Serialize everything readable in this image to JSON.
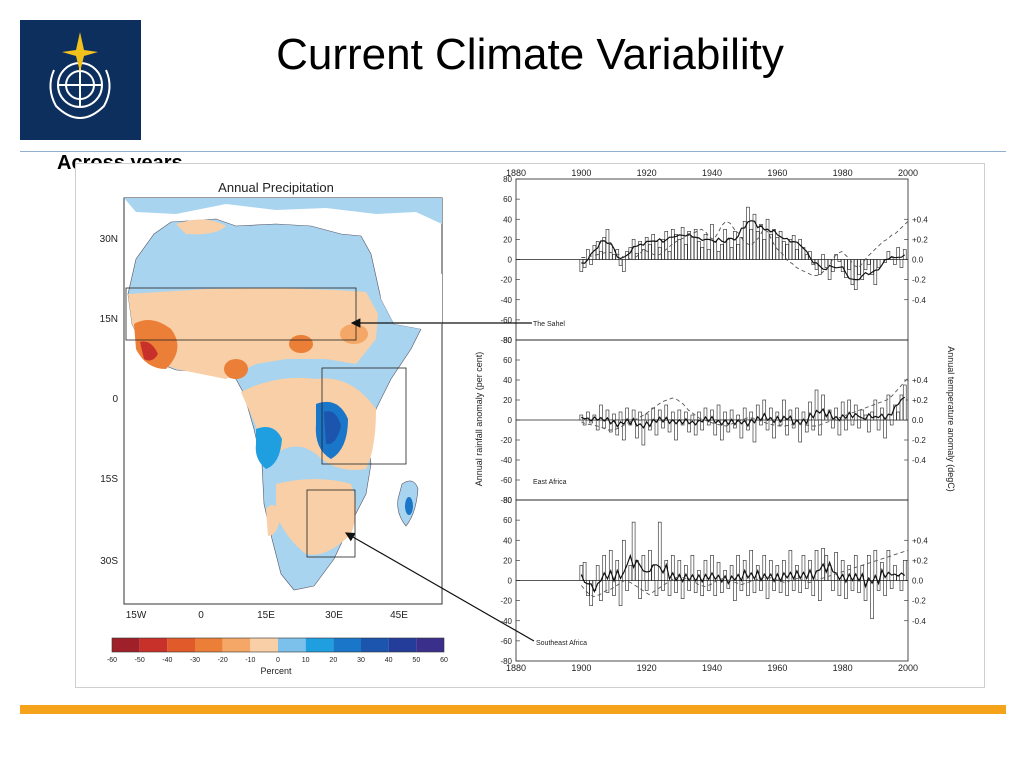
{
  "slide": {
    "title": "Current Climate Variability",
    "subtitle": "Across years",
    "footer_color": "#f5a31a",
    "logo_color": "#0d2f5e"
  },
  "chart_data": [
    {
      "type": "heatmap",
      "title": "Annual Precipitation",
      "x_ticks": [
        "15W",
        "0",
        "15E",
        "30E",
        "45E"
      ],
      "y_ticks": [
        "30N",
        "15N",
        "0",
        "15S",
        "30S"
      ],
      "colorbar": {
        "label": "Percent",
        "ticks": [
          "-60",
          "-50",
          "-40",
          "-30",
          "-20",
          "-10",
          "0",
          "10",
          "20",
          "30",
          "40",
          "50",
          "60"
        ],
        "colors": [
          "#a0202a",
          "#c8302a",
          "#e05a2a",
          "#ec7f38",
          "#f4a766",
          "#f8cfa6",
          "#a9d4ef",
          "#7cc1ec",
          "#1f9ee0",
          "#1a76c8",
          "#1b55ad",
          "#253d9a",
          "#3a2f8a"
        ]
      },
      "regions": [
        "The Sahel",
        "East Africa",
        "Southeast Africa"
      ]
    },
    {
      "type": "bar",
      "x_ticks": [
        "1880",
        "1900",
        "1920",
        "1940",
        "1960",
        "1980",
        "2000"
      ],
      "xlim": [
        1880,
        2000
      ],
      "ylabel": "Annual rainfall anomaly (per cent)",
      "y2label": "Annual temperature anomaly (degC)",
      "y_ticks": [
        "80",
        "60",
        "40",
        "20",
        "0",
        "-20",
        "-40",
        "-60",
        "-80"
      ],
      "ylim": [
        -80,
        80
      ],
      "y2_ticks": [
        "+0.4",
        "+0.2",
        "0.0",
        "-0.2",
        "-0.4"
      ],
      "y2lim": [
        -0.8,
        0.8
      ],
      "panels": [
        {
          "name": "The Sahel",
          "years_start": 1900,
          "rain": [
            -12,
            -8,
            10,
            -5,
            14,
            18,
            8,
            22,
            30,
            15,
            5,
            10,
            -6,
            -12,
            8,
            12,
            20,
            6,
            18,
            10,
            22,
            15,
            25,
            18,
            12,
            20,
            28,
            8,
            30,
            25,
            20,
            32,
            15,
            28,
            22,
            30,
            18,
            12,
            25,
            10,
            35,
            18,
            8,
            15,
            30,
            20,
            12,
            28,
            15,
            22,
            38,
            52,
            30,
            45,
            28,
            35,
            20,
            40,
            25,
            30,
            22,
            28,
            18,
            15,
            20,
            24,
            10,
            20,
            12,
            5,
            8,
            -5,
            -10,
            -15,
            5,
            -8,
            -20,
            -12,
            5,
            -2,
            -12,
            -18,
            -10,
            -25,
            -30,
            -15,
            -20,
            -10,
            -5,
            -15,
            -25,
            -8,
            0,
            -3,
            8,
            2,
            -5,
            12,
            -8,
            10
          ],
          "temp": [
            0.02,
            0.02,
            0.03,
            0.04,
            0.05,
            0.06,
            0.07,
            0.07,
            0.06,
            0.05,
            0.03,
            0.02,
            0.0,
            0.02,
            0.05,
            0.1,
            0.08,
            0.06,
            0.04,
            0.05,
            0.08,
            0.12,
            0.15,
            0.18,
            0.2,
            0.22,
            0.24,
            0.26,
            0.28,
            0.3,
            0.28,
            0.22,
            0.2,
            0.26,
            0.34,
            0.38,
            0.36,
            0.3,
            0.26,
            0.2,
            0.16,
            0.14,
            0.18,
            0.22,
            0.3,
            0.28,
            0.2,
            0.12,
            0.08,
            0.04,
            -0.02,
            -0.04,
            -0.08,
            -0.1,
            -0.12,
            -0.14,
            -0.16,
            -0.16,
            -0.14,
            -0.1,
            -0.06,
            0.02,
            0.06,
            0.08,
            0.04,
            0.0,
            -0.06,
            -0.08,
            -0.04,
            0.02,
            0.06,
            0.1,
            0.14,
            0.18,
            0.2,
            0.24,
            0.26,
            0.3,
            0.34,
            0.38
          ]
        },
        {
          "name": "East Africa",
          "years_start": 1900,
          "rain": [
            5,
            -5,
            8,
            -3,
            5,
            -10,
            15,
            -8,
            10,
            -12,
            6,
            -15,
            8,
            -20,
            12,
            -5,
            10,
            -18,
            8,
            -25,
            6,
            -10,
            12,
            -15,
            10,
            -8,
            15,
            -12,
            8,
            -20,
            10,
            -5,
            8,
            -12,
            5,
            -15,
            8,
            -10,
            12,
            -5,
            10,
            -15,
            15,
            -20,
            8,
            -12,
            10,
            -8,
            5,
            -18,
            12,
            -10,
            8,
            -22,
            15,
            -5,
            20,
            -10,
            12,
            -18,
            8,
            -5,
            20,
            -15,
            10,
            -8,
            12,
            -22,
            8,
            -12,
            18,
            -10,
            30,
            -15,
            25,
            5,
            10,
            -8,
            12,
            -15,
            18,
            -10,
            20,
            -5,
            15,
            -8,
            10,
            5,
            -12,
            8,
            20,
            -10,
            12,
            -18,
            25,
            -5,
            15,
            8,
            25,
            35
          ],
          "temp": [
            -0.02,
            -0.04,
            -0.05,
            -0.06,
            -0.08,
            -0.1,
            -0.1,
            -0.08,
            -0.05,
            -0.02,
            0.0,
            0.03,
            0.06,
            0.1,
            0.14,
            0.18,
            0.2,
            0.22,
            0.2,
            0.16,
            0.1,
            0.06,
            0.02,
            0.0,
            -0.02,
            -0.04,
            -0.05,
            -0.06,
            -0.04,
            -0.02,
            0.0,
            0.02,
            0.02,
            0.0,
            -0.02,
            -0.04,
            -0.05,
            -0.06,
            -0.06,
            -0.05,
            -0.04,
            -0.04,
            -0.05,
            -0.06,
            -0.06,
            -0.04,
            -0.02,
            0.0,
            0.02,
            0.04,
            0.06,
            0.08,
            0.1,
            0.12,
            0.14,
            0.16,
            0.18,
            0.2,
            0.24,
            0.3,
            0.36,
            0.42
          ]
        },
        {
          "name": "Southeast Africa",
          "years_start": 1900,
          "rain": [
            15,
            18,
            -15,
            -25,
            -10,
            15,
            -20,
            25,
            -12,
            30,
            -15,
            20,
            -25,
            40,
            -10,
            15,
            58,
            20,
            -18,
            25,
            -10,
            30,
            15,
            -15,
            58,
            -10,
            20,
            -15,
            25,
            -12,
            20,
            -18,
            15,
            -10,
            25,
            -12,
            10,
            -15,
            20,
            -10,
            25,
            -15,
            18,
            -12,
            10,
            -8,
            15,
            -20,
            25,
            -10,
            20,
            -15,
            30,
            -12,
            15,
            -10,
            25,
            -18,
            20,
            -10,
            15,
            -12,
            20,
            -15,
            30,
            -10,
            15,
            -12,
            25,
            -8,
            20,
            -15,
            30,
            -20,
            32,
            25,
            15,
            -10,
            28,
            -15,
            20,
            -18,
            15,
            -10,
            25,
            -12,
            15,
            -20,
            25,
            -38,
            30,
            -10,
            18,
            -15,
            30,
            -8,
            15,
            5,
            -10,
            20
          ],
          "temp": [
            -0.05,
            -0.12,
            -0.16,
            -0.14,
            -0.1,
            -0.08,
            -0.04,
            0.0,
            -0.02,
            -0.06,
            -0.1,
            -0.14,
            -0.1,
            -0.06,
            -0.02,
            0.02,
            0.04,
            0.02,
            0.0,
            -0.04,
            -0.06,
            -0.04,
            0.0,
            0.02,
            0.0,
            -0.02,
            -0.04,
            -0.02,
            0.0,
            0.02,
            0.04,
            0.02,
            0.0,
            -0.02,
            0.0,
            0.02,
            0.0,
            -0.02,
            0.0,
            0.02,
            0.04,
            0.06,
            0.08,
            0.1,
            0.12,
            0.14,
            0.16,
            0.18,
            0.2,
            0.22,
            0.24,
            0.26,
            0.28,
            0.3
          ]
        }
      ]
    }
  ]
}
